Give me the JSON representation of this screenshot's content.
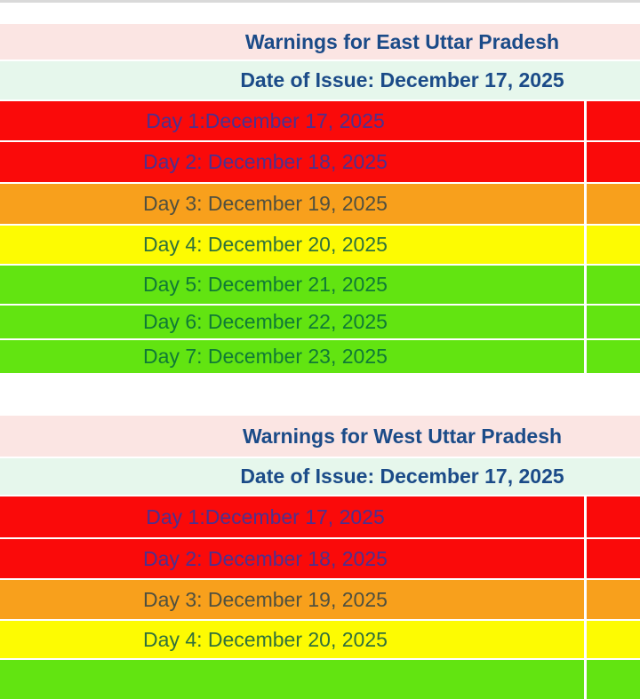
{
  "colors": {
    "red": "#fa0a0a",
    "orange": "#f8a01c",
    "yellow": "#fdfb02",
    "green": "#62e411",
    "red_text": "#4b3190",
    "orange_text": "#50503f",
    "yellow_text": "#31713b",
    "green_text": "#107a35",
    "header_text": "#1b4b88",
    "title_bg": "#fbe5e3",
    "issue_bg": "#e6f7ec",
    "top_line": "#d9d9d9"
  },
  "tables": [
    {
      "title": "Warnings for East Uttar Pradesh",
      "date_of_issue": "Date of Issue: December 17, 2025",
      "rows": [
        {
          "label": "Day 1:December 17, 2025",
          "severity": "red"
        },
        {
          "label": "Day 2: December 18, 2025",
          "severity": "red"
        },
        {
          "label": "Day 3: December 19, 2025",
          "severity": "orange"
        },
        {
          "label": "Day 4: December 20, 2025",
          "severity": "yellow"
        },
        {
          "label": "Day 5: December 21, 2025",
          "severity": "green"
        },
        {
          "label": "Day 6: December 22, 2025",
          "severity": "green"
        },
        {
          "label": "Day 7: December 23, 2025",
          "severity": "green"
        }
      ]
    },
    {
      "title": "Warnings for West Uttar Pradesh",
      "date_of_issue": "Date of Issue: December 17, 2025",
      "rows": [
        {
          "label": "Day 1:December 17, 2025",
          "severity": "red"
        },
        {
          "label": "Day 2: December 18, 2025",
          "severity": "red"
        },
        {
          "label": "Day 3: December 19, 2025",
          "severity": "orange"
        },
        {
          "label": "Day 4: December 20, 2025",
          "severity": "yellow"
        },
        {
          "label": "",
          "severity": "green"
        }
      ]
    }
  ]
}
